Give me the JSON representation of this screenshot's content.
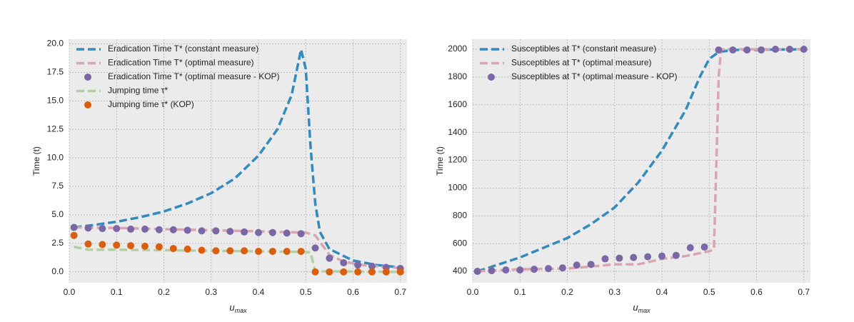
{
  "chart_data": [
    {
      "type": "line",
      "ylabel": "Time (t)",
      "xlabel": {
        "base": "u",
        "sub": "max"
      },
      "xlim": [
        0,
        0.714
      ],
      "ylim": [
        -0.95,
        20.4
      ],
      "xticks": [
        {
          "value": 0,
          "label": "0.0"
        },
        0.1,
        0.2,
        0.3,
        0.4,
        0.5,
        0.6,
        0.7
      ],
      "yticks": [
        {
          "value": 0,
          "label": "0.0"
        },
        2.5,
        {
          "value": 5,
          "label": "5.0"
        },
        7.5,
        {
          "value": 10,
          "label": "10.0"
        },
        12.5,
        {
          "value": 15,
          "label": "15.0"
        },
        17.5,
        {
          "value": 20,
          "label": "20.0"
        }
      ],
      "grid": true,
      "legend": "upper-left",
      "series": [
        {
          "name": "Eradication Time T* (constant measure)",
          "color": "#348abd",
          "style": "dashed",
          "x": [
            0.01,
            0.05,
            0.1,
            0.15,
            0.2,
            0.25,
            0.3,
            0.35,
            0.4,
            0.44,
            0.47,
            0.49,
            0.5,
            0.51,
            0.52,
            0.53,
            0.55,
            0.6,
            0.65,
            0.7
          ],
          "values": [
            3.9,
            4.1,
            4.4,
            4.8,
            5.3,
            6.0,
            6.9,
            8.2,
            10.2,
            12.5,
            15.5,
            19.5,
            17.8,
            11,
            6,
            3.5,
            2.0,
            1.0,
            0.6,
            0.4
          ]
        },
        {
          "name": "Eradication Time T* (optimal measure)",
          "color": "#d9a5b0",
          "style": "dashed",
          "x": [
            0.01,
            0.1,
            0.2,
            0.3,
            0.4,
            0.5,
            0.52,
            0.55,
            0.58,
            0.62,
            0.66,
            0.7
          ],
          "values": [
            3.9,
            3.85,
            3.75,
            3.65,
            3.55,
            3.45,
            3.2,
            1.5,
            0.9,
            0.6,
            0.45,
            0.35
          ]
        },
        {
          "name": "Eradication Time T* (optimal measure - KOP)",
          "color": "#7a68a6",
          "style": "markers",
          "x": [
            0.01,
            0.04,
            0.07,
            0.1,
            0.13,
            0.16,
            0.19,
            0.22,
            0.25,
            0.28,
            0.31,
            0.34,
            0.37,
            0.4,
            0.43,
            0.46,
            0.49,
            0.52,
            0.55,
            0.58,
            0.61,
            0.64,
            0.67,
            0.7
          ],
          "values": [
            3.9,
            3.85,
            3.8,
            3.8,
            3.75,
            3.75,
            3.7,
            3.7,
            3.65,
            3.6,
            3.6,
            3.55,
            3.5,
            3.45,
            3.45,
            3.4,
            3.35,
            2.1,
            1.2,
            0.8,
            0.6,
            0.5,
            0.4,
            0.3
          ]
        },
        {
          "name": "Jumping time τ*",
          "color": "#b5cfa2",
          "style": "dashed",
          "x": [
            0.01,
            0.04,
            0.1,
            0.2,
            0.3,
            0.4,
            0.5,
            0.51,
            0.52,
            0.7
          ],
          "values": [
            2.2,
            1.95,
            1.95,
            1.9,
            1.85,
            1.8,
            1.75,
            1.7,
            0.05,
            0.0
          ]
        },
        {
          "name": "Jumping time τ* (KOP)",
          "color": "#d95f0e",
          "style": "markers",
          "x": [
            0.01,
            0.04,
            0.07,
            0.1,
            0.13,
            0.16,
            0.19,
            0.22,
            0.25,
            0.28,
            0.31,
            0.34,
            0.37,
            0.4,
            0.43,
            0.46,
            0.49,
            0.52,
            0.55,
            0.58,
            0.61,
            0.64,
            0.67,
            0.7
          ],
          "values": [
            3.2,
            2.45,
            2.4,
            2.35,
            2.3,
            2.25,
            2.2,
            2.05,
            2.0,
            1.9,
            1.85,
            1.85,
            1.85,
            1.8,
            1.8,
            1.8,
            1.8,
            0.0,
            0.0,
            0.0,
            0.0,
            0.0,
            0.0,
            0.0
          ]
        }
      ]
    },
    {
      "type": "line",
      "ylabel": "Time (t)",
      "xlabel": {
        "base": "u",
        "sub": "max"
      },
      "xlim": [
        0,
        0.714
      ],
      "ylim": [
        318,
        2072
      ],
      "xticks": [
        {
          "value": 0,
          "label": "0.0"
        },
        0.1,
        0.2,
        0.3,
        0.4,
        0.5,
        0.6,
        0.7
      ],
      "yticks": [
        400,
        600,
        800,
        1000,
        1200,
        1400,
        1600,
        1800,
        2000
      ],
      "grid": true,
      "legend": "upper-left",
      "series": [
        {
          "name": "Susceptibles at T* (constant measure)",
          "color": "#348abd",
          "style": "dashed",
          "x": [
            0.01,
            0.1,
            0.2,
            0.25,
            0.3,
            0.35,
            0.4,
            0.45,
            0.48,
            0.5,
            0.52,
            0.55,
            0.7
          ],
          "values": [
            400,
            500,
            640,
            740,
            860,
            1040,
            1270,
            1560,
            1800,
            1930,
            1980,
            1995,
            2000
          ]
        },
        {
          "name": "Susceptibles at T* (optimal measure)",
          "color": "#d9a5b0",
          "style": "dashed",
          "x": [
            0.01,
            0.1,
            0.2,
            0.3,
            0.35,
            0.4,
            0.45,
            0.5,
            0.51,
            0.52,
            0.525,
            0.7
          ],
          "values": [
            400,
            415,
            420,
            450,
            450,
            490,
            510,
            545,
            560,
            1800,
            2000,
            2000
          ]
        },
        {
          "name": "Susceptibles at T* (optimal measure - KOP)",
          "color": "#7a68a6",
          "style": "markers",
          "x": [
            0.01,
            0.04,
            0.07,
            0.1,
            0.13,
            0.16,
            0.19,
            0.22,
            0.25,
            0.28,
            0.31,
            0.34,
            0.37,
            0.4,
            0.43,
            0.46,
            0.49,
            0.52,
            0.55,
            0.58,
            0.61,
            0.64,
            0.67,
            0.7
          ],
          "values": [
            400,
            405,
            410,
            410,
            415,
            420,
            425,
            445,
            450,
            490,
            495,
            500,
            505,
            510,
            515,
            570,
            575,
            1995,
            1995,
            1995,
            1995,
            2000,
            2000,
            2000
          ]
        }
      ]
    }
  ]
}
